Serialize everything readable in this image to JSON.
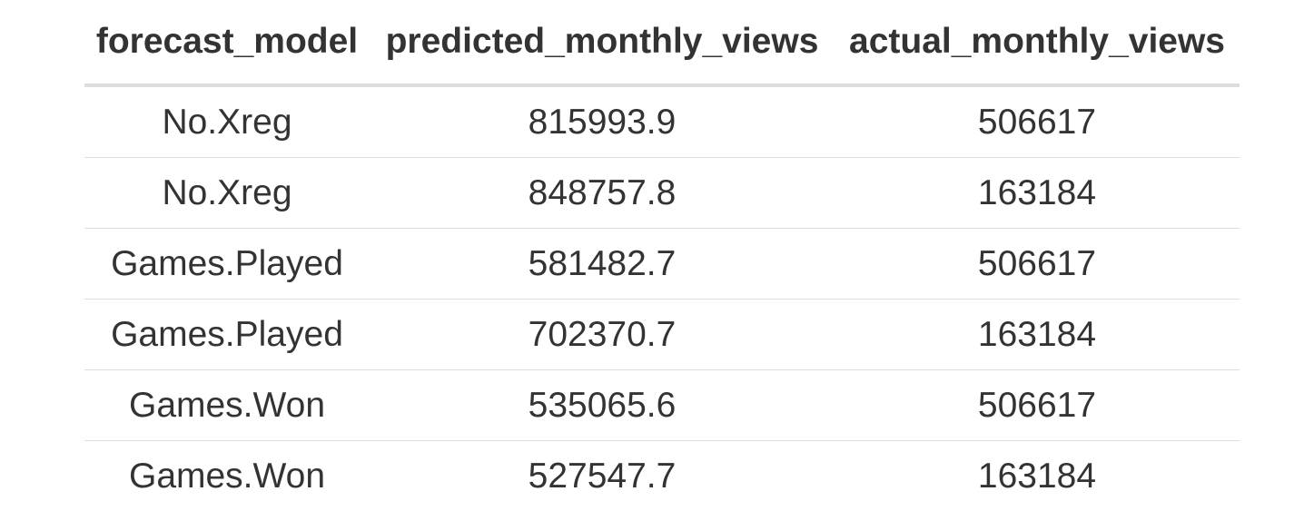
{
  "table": {
    "columns": [
      "forecast_model",
      "predicted_monthly_views",
      "actual_monthly_views"
    ],
    "rows": [
      [
        "No.Xreg",
        "815993.9",
        "506617"
      ],
      [
        "No.Xreg",
        "848757.8",
        "163184"
      ],
      [
        "Games.Played",
        "581482.7",
        "506617"
      ],
      [
        "Games.Played",
        "702370.7",
        "163184"
      ],
      [
        "Games.Won",
        "535065.6",
        "506617"
      ],
      [
        "Games.Won",
        "527547.7",
        "163184"
      ]
    ]
  },
  "colors": {
    "text": "#333333",
    "rule": "#dddddd",
    "background": "#ffffff"
  }
}
